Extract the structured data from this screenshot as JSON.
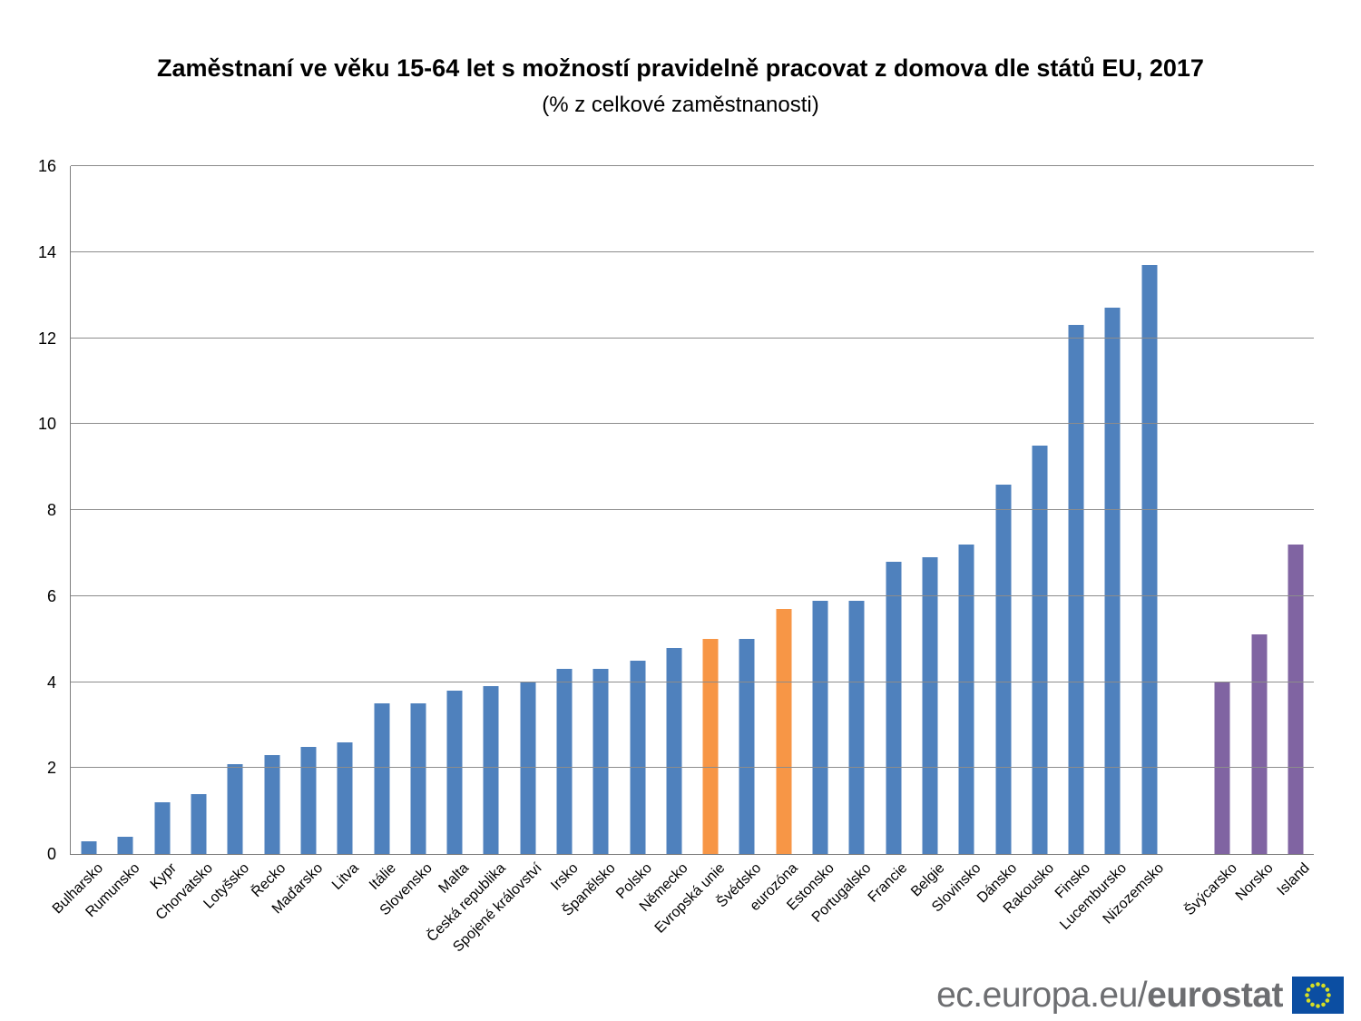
{
  "title": "Zaměstnaní ve věku 15-64 let s možností pravidelně pracovat z domova dle států EU, 2017",
  "subtitle": "(% z celkové zaměstnanosti)",
  "chart_data": {
    "type": "bar",
    "title": "Zaměstnaní ve věku 15-64 let s možností pravidelně pracovat z domova dle států EU, 2017",
    "subtitle": "(% z celkové zaměstnanosti)",
    "ylabel": "",
    "xlabel": "",
    "ylim": [
      0,
      16
    ],
    "ytick_step": 2,
    "yticks": [
      0,
      2,
      4,
      6,
      8,
      10,
      12,
      14,
      16
    ],
    "grid": true,
    "legend": "none",
    "axis_color": "#7f7f7f",
    "grid_color": "#8c8c8c",
    "colors": {
      "eu_member": "#4F81BD",
      "eu_aggregate": "#F79646",
      "efta": "#8064A2"
    },
    "gap_before": [
      "Švýcarsko"
    ],
    "bars": [
      {
        "label": "Bulharsko",
        "value": 0.3,
        "group": "eu_member"
      },
      {
        "label": "Rumunsko",
        "value": 0.4,
        "group": "eu_member"
      },
      {
        "label": "Kypr",
        "value": 1.2,
        "group": "eu_member"
      },
      {
        "label": "Chorvatsko",
        "value": 1.4,
        "group": "eu_member"
      },
      {
        "label": "Lotyšsko",
        "value": 2.1,
        "group": "eu_member"
      },
      {
        "label": "Řecko",
        "value": 2.3,
        "group": "eu_member"
      },
      {
        "label": "Maďarsko",
        "value": 2.5,
        "group": "eu_member"
      },
      {
        "label": "Litva",
        "value": 2.6,
        "group": "eu_member"
      },
      {
        "label": "Itálie",
        "value": 3.5,
        "group": "eu_member"
      },
      {
        "label": "Slovensko",
        "value": 3.5,
        "group": "eu_member"
      },
      {
        "label": "Malta",
        "value": 3.8,
        "group": "eu_member"
      },
      {
        "label": "Česká republika",
        "value": 3.9,
        "group": "eu_member"
      },
      {
        "label": "Spojené království",
        "value": 4.0,
        "group": "eu_member"
      },
      {
        "label": "Irsko",
        "value": 4.3,
        "group": "eu_member"
      },
      {
        "label": "Španělsko",
        "value": 4.3,
        "group": "eu_member"
      },
      {
        "label": "Polsko",
        "value": 4.5,
        "group": "eu_member"
      },
      {
        "label": "Německo",
        "value": 4.8,
        "group": "eu_member"
      },
      {
        "label": "Evropská unie",
        "value": 5.0,
        "group": "eu_aggregate"
      },
      {
        "label": "Švédsko",
        "value": 5.0,
        "group": "eu_member"
      },
      {
        "label": "eurozóna",
        "value": 5.7,
        "group": "eu_aggregate"
      },
      {
        "label": "Estonsko",
        "value": 5.9,
        "group": "eu_member"
      },
      {
        "label": "Portugalsko",
        "value": 5.9,
        "group": "eu_member"
      },
      {
        "label": "Francie",
        "value": 6.8,
        "group": "eu_member"
      },
      {
        "label": "Belgie",
        "value": 6.9,
        "group": "eu_member"
      },
      {
        "label": "Slovinsko",
        "value": 7.2,
        "group": "eu_member"
      },
      {
        "label": "Dánsko",
        "value": 8.6,
        "group": "eu_member"
      },
      {
        "label": "Rakousko",
        "value": 9.5,
        "group": "eu_member"
      },
      {
        "label": "Finsko",
        "value": 12.3,
        "group": "eu_member"
      },
      {
        "label": "Lucembursko",
        "value": 12.7,
        "group": "eu_member"
      },
      {
        "label": "Nizozemsko",
        "value": 13.7,
        "group": "eu_member"
      },
      {
        "label": "Švýcarsko",
        "value": 4.0,
        "group": "efta"
      },
      {
        "label": "Norsko",
        "value": 5.1,
        "group": "efta"
      },
      {
        "label": "Island",
        "value": 7.2,
        "group": "efta"
      }
    ]
  },
  "footer": {
    "url_prefix": "ec.europa.eu/",
    "url_bold": "eurostat",
    "flag_colors": {
      "blue": "#0b4ea2",
      "star": "#d7df23"
    }
  }
}
